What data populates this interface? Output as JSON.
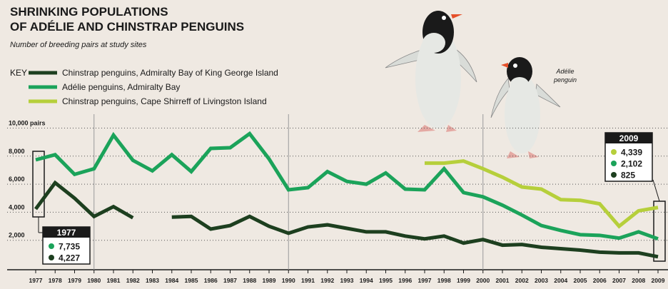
{
  "chart_data": {
    "type": "line",
    "title": [
      "SHRINKING POPULATIONS",
      "OF ADÉLIE AND CHINSTRAP PENGUINS"
    ],
    "subtitle": "Number of breeding pairs at study sites",
    "legend_title": "KEY",
    "annotation": [
      "Adélie",
      "penguin"
    ],
    "x": [
      1977,
      1978,
      1979,
      1980,
      1981,
      1982,
      1983,
      1984,
      1985,
      1986,
      1987,
      1988,
      1989,
      1990,
      1991,
      1992,
      1993,
      1994,
      1995,
      1996,
      1997,
      1998,
      1999,
      2000,
      2001,
      2002,
      2003,
      2004,
      2005,
      2006,
      2007,
      2008,
      2009
    ],
    "xlim": [
      1977,
      2009
    ],
    "xticks": [
      1977,
      1978,
      1979,
      1980,
      1981,
      1982,
      1983,
      1984,
      1985,
      1986,
      1987,
      1988,
      1989,
      1990,
      1991,
      1992,
      1993,
      1994,
      1995,
      1996,
      1997,
      1998,
      1999,
      2000,
      2001,
      2002,
      2003,
      2004,
      2005,
      2006,
      2007,
      2008,
      2009
    ],
    "ylim": [
      0,
      10000
    ],
    "yticks": [
      {
        "value": 2000,
        "label": "2,000"
      },
      {
        "value": 4000,
        "label": "4,000"
      },
      {
        "value": 6000,
        "label": "6,000"
      },
      {
        "value": 8000,
        "label": "8,000"
      },
      {
        "value": 10000,
        "label": "10,000 pairs"
      }
    ],
    "grid": true,
    "series": [
      {
        "name": "Chinstrap penguins, Admiralty Bay of King George Island",
        "color": "#1d3f1f",
        "values": [
          4227,
          6100,
          5000,
          3700,
          4400,
          3600,
          null,
          3650,
          3700,
          2800,
          3050,
          3700,
          3000,
          2500,
          2950,
          3100,
          2850,
          2600,
          2600,
          2300,
          2100,
          2300,
          1800,
          2050,
          1650,
          1700,
          1500,
          1400,
          1300,
          1150,
          1100,
          1100,
          825
        ],
        "value_labels": [
          "4,227",
          null,
          null,
          null,
          null,
          null,
          null,
          null,
          null,
          null,
          null,
          null,
          null,
          null,
          null,
          null,
          null,
          null,
          null,
          null,
          null,
          null,
          null,
          null,
          null,
          null,
          null,
          null,
          null,
          null,
          null,
          null,
          "825"
        ]
      },
      {
        "name": "Adélie penguins, Admiralty Bay",
        "color": "#1ba35a",
        "values": [
          7735,
          8100,
          6700,
          7100,
          9500,
          7700,
          6950,
          8100,
          6900,
          8550,
          8600,
          9600,
          7800,
          5600,
          5750,
          6900,
          6200,
          6000,
          6800,
          5650,
          5600,
          7100,
          5400,
          5100,
          4500,
          3800,
          3050,
          2700,
          2400,
          2350,
          2150,
          2600,
          2102
        ],
        "value_labels": [
          "7,735",
          null,
          null,
          null,
          null,
          null,
          null,
          null,
          null,
          null,
          null,
          null,
          null,
          null,
          null,
          null,
          null,
          null,
          null,
          null,
          null,
          null,
          null,
          null,
          null,
          null,
          null,
          null,
          null,
          null,
          null,
          null,
          "2,102"
        ]
      },
      {
        "name": "Chinstrap penguins, Cape Shirreff of Livingston Island",
        "color": "#b6cf3b",
        "values": [
          null,
          null,
          null,
          null,
          null,
          null,
          null,
          null,
          null,
          null,
          null,
          null,
          null,
          null,
          null,
          null,
          null,
          null,
          null,
          null,
          7500,
          7500,
          7650,
          7100,
          6500,
          5800,
          5650,
          4900,
          4850,
          4600,
          3000,
          4100,
          4339
        ],
        "value_labels": [
          null,
          null,
          null,
          null,
          null,
          null,
          null,
          null,
          null,
          null,
          null,
          null,
          null,
          null,
          null,
          null,
          null,
          null,
          null,
          null,
          null,
          null,
          null,
          null,
          null,
          null,
          null,
          null,
          null,
          null,
          null,
          null,
          "4,339"
        ]
      }
    ]
  }
}
